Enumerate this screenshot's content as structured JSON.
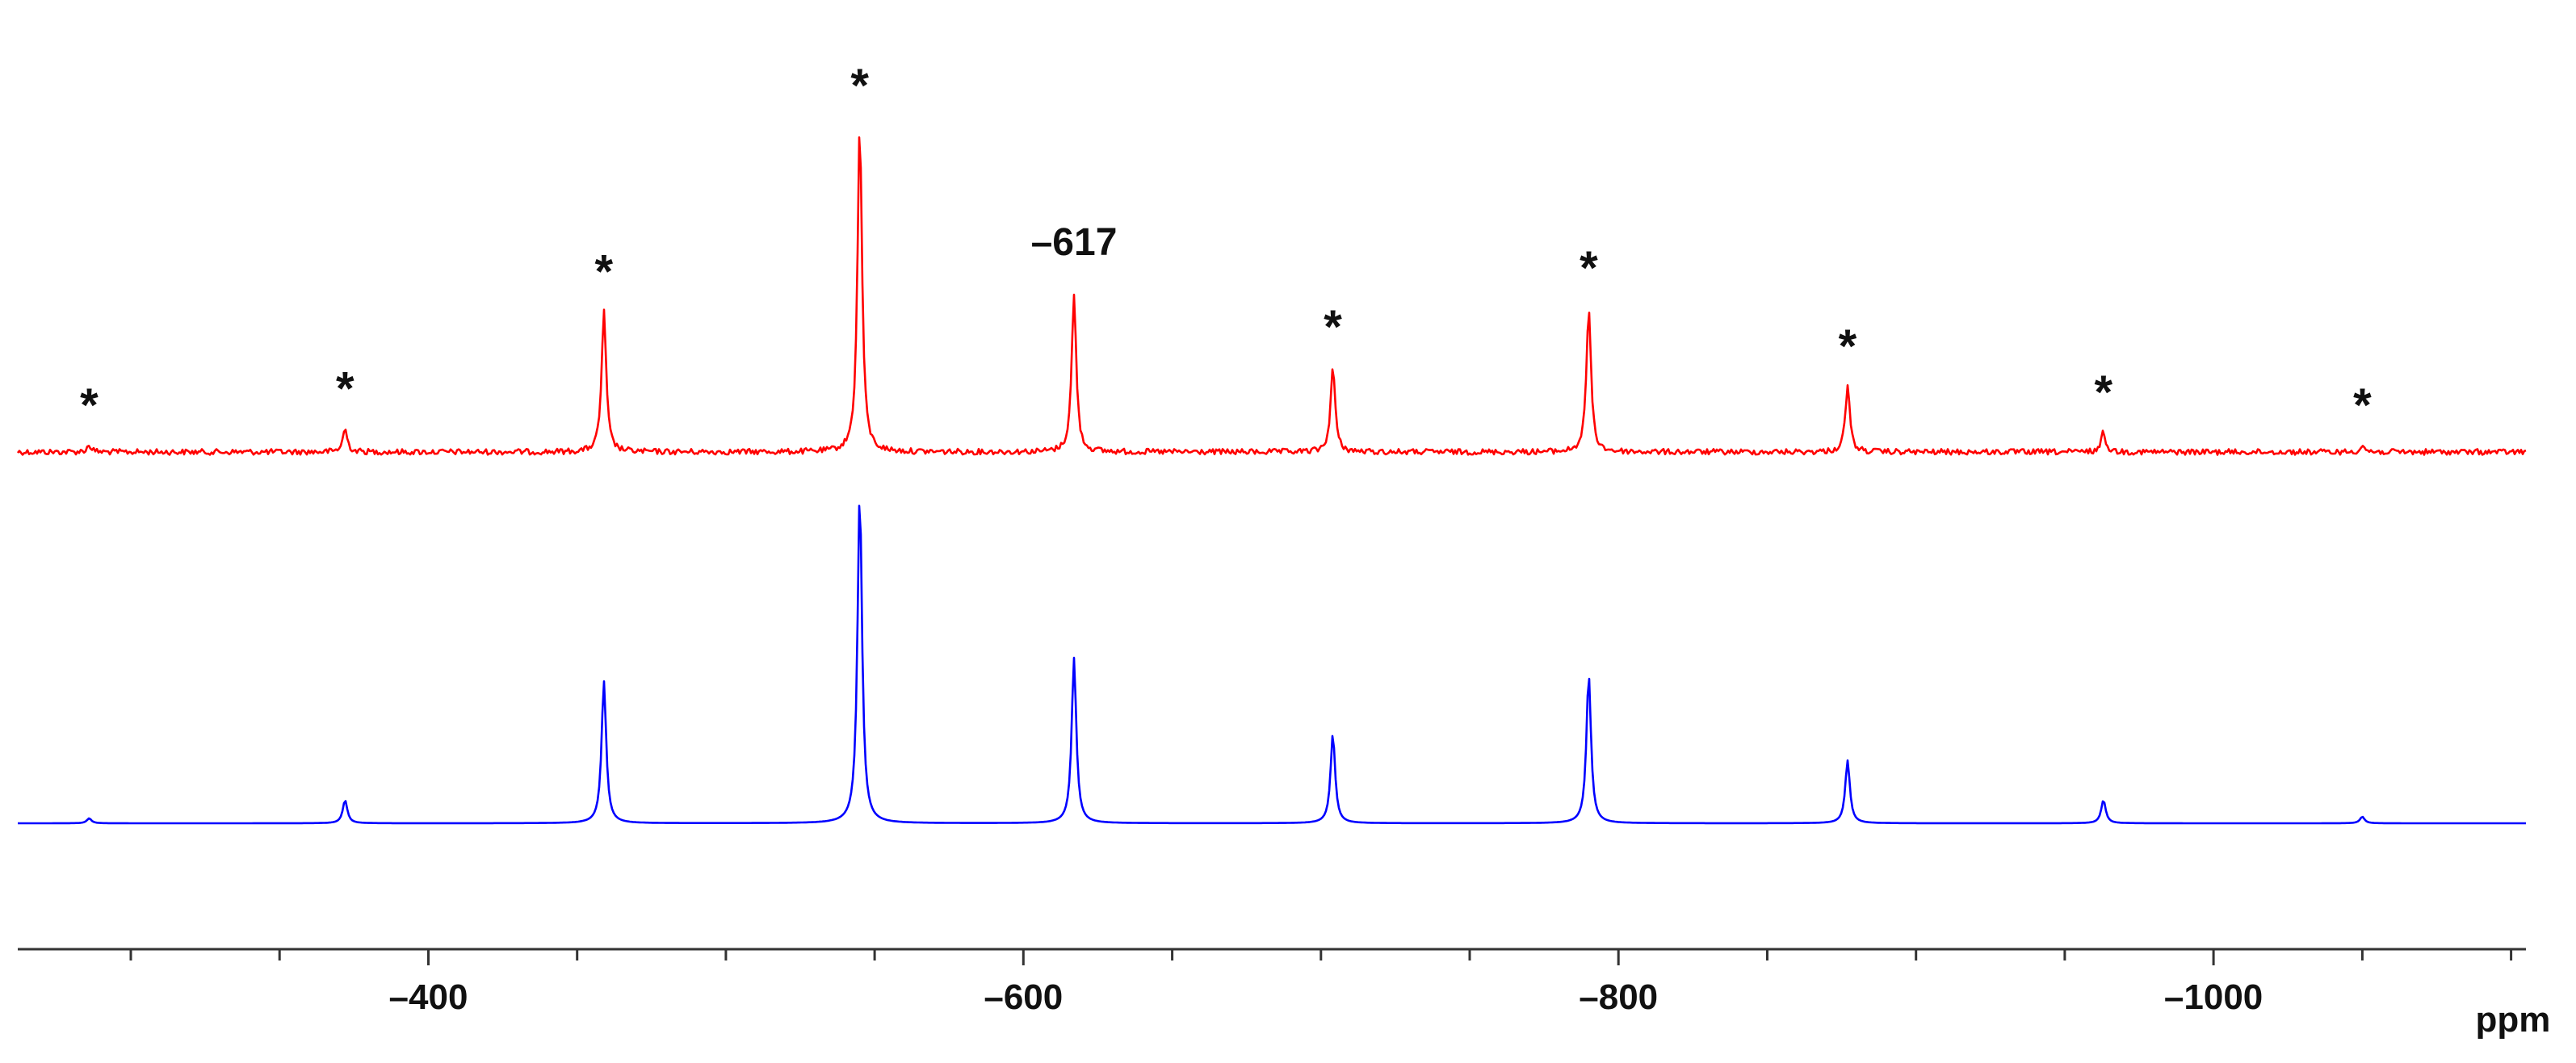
{
  "chart_data": {
    "type": "line",
    "xlabel": "ppm",
    "xlim": [
      -262,
      -1105
    ],
    "x_reversed": true,
    "x_ticks_major": [
      -400,
      -600,
      -800,
      -1000
    ],
    "x_tick_labels": [
      "–400",
      "–600",
      "–800",
      "–1000"
    ],
    "x_ticks_minor_step": 50,
    "grid": false,
    "y_axis": "hidden",
    "series": [
      {
        "color": "#ff0000",
        "baseline": 0.02,
        "peaks": [
          {
            "x": -286,
            "height": 0.02
          },
          {
            "x": -372,
            "height": 0.07
          },
          {
            "x": -459,
            "height": 0.43
          },
          {
            "x": -545,
            "height": 1.0
          },
          {
            "x": -617,
            "height": 0.48
          },
          {
            "x": -704,
            "height": 0.26
          },
          {
            "x": -790,
            "height": 0.44
          },
          {
            "x": -877,
            "height": 0.2
          },
          {
            "x": -963,
            "height": 0.06
          },
          {
            "x": -1050,
            "height": 0.02
          }
        ]
      },
      {
        "color": "#0000ff",
        "baseline": 0.0,
        "peaks": [
          {
            "x": -286,
            "height": 0.015
          },
          {
            "x": -372,
            "height": 0.07
          },
          {
            "x": -459,
            "height": 0.43
          },
          {
            "x": -545,
            "height": 1.0
          },
          {
            "x": -617,
            "height": 0.5
          },
          {
            "x": -704,
            "height": 0.27
          },
          {
            "x": -790,
            "height": 0.45
          },
          {
            "x": -877,
            "height": 0.19
          },
          {
            "x": -963,
            "height": 0.07
          },
          {
            "x": -1050,
            "height": 0.02
          }
        ]
      }
    ],
    "annotations": [
      {
        "text": "*",
        "x": -286
      },
      {
        "text": "*",
        "x": -372
      },
      {
        "text": "*",
        "x": -459
      },
      {
        "text": "*",
        "x": -545
      },
      {
        "text": "–617",
        "x": -617
      },
      {
        "text": "*",
        "x": -704
      },
      {
        "text": "*",
        "x": -790
      },
      {
        "text": "*",
        "x": -877
      },
      {
        "text": "*",
        "x": -963
      },
      {
        "text": "*",
        "x": -1050
      }
    ]
  }
}
